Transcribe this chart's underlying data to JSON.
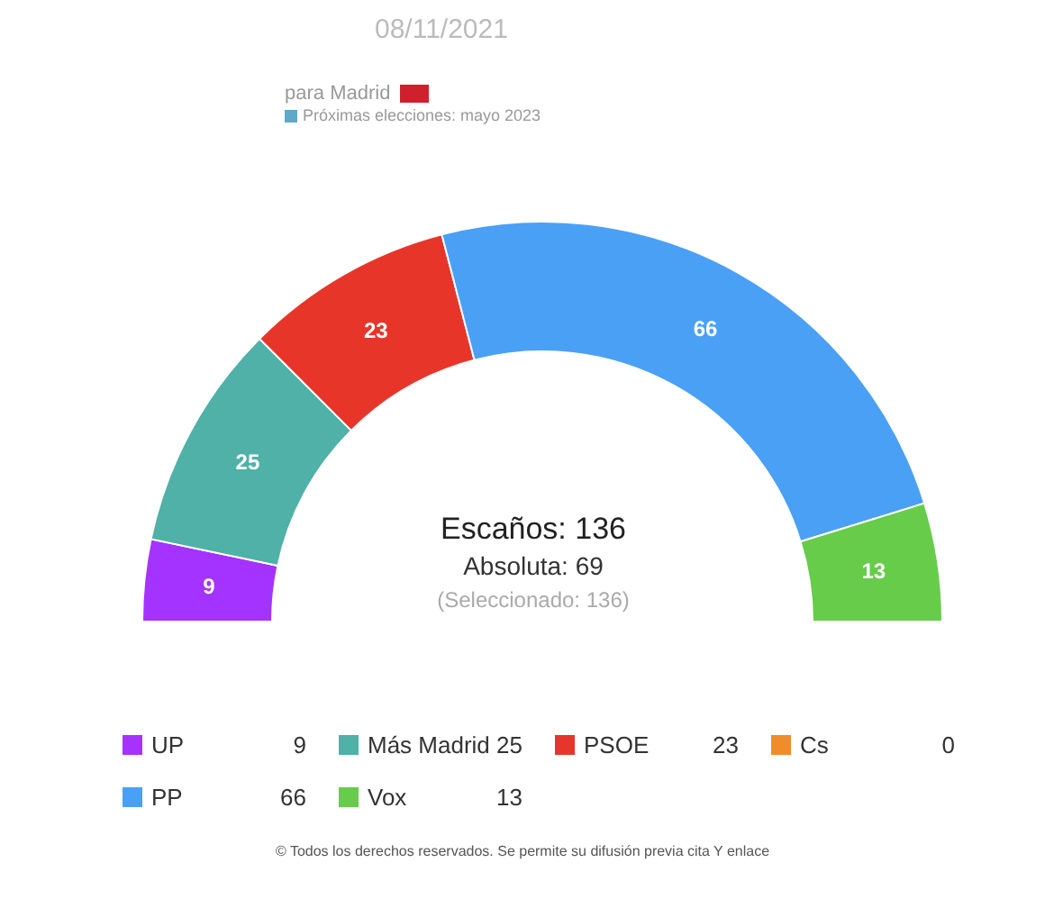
{
  "chart_data": {
    "type": "donut",
    "title": "08/11/2021",
    "subtitle": "para Madrid",
    "categories": [
      "UP",
      "Más Madrid",
      "PSOE",
      "Cs",
      "PP",
      "Vox"
    ],
    "values": [
      9,
      25,
      23,
      0,
      66,
      13
    ],
    "value_labels": [
      "9",
      "25",
      "23",
      "0",
      "66",
      "13"
    ],
    "colors": [
      "#a533ff",
      "#4fb1a8",
      "#e8352a",
      "#f28c28",
      "#4aa0f5",
      "#66cc4a"
    ],
    "legend": "bottom",
    "annotations": [
      "Próximas elecciones: mayo 2023",
      "Escaños: 136",
      "Absoluta: 69",
      "(Seleccionado: 136)",
      "© Todos los derechos reservados. Se permite su difusión previa cita Y enlace"
    ]
  }
}
